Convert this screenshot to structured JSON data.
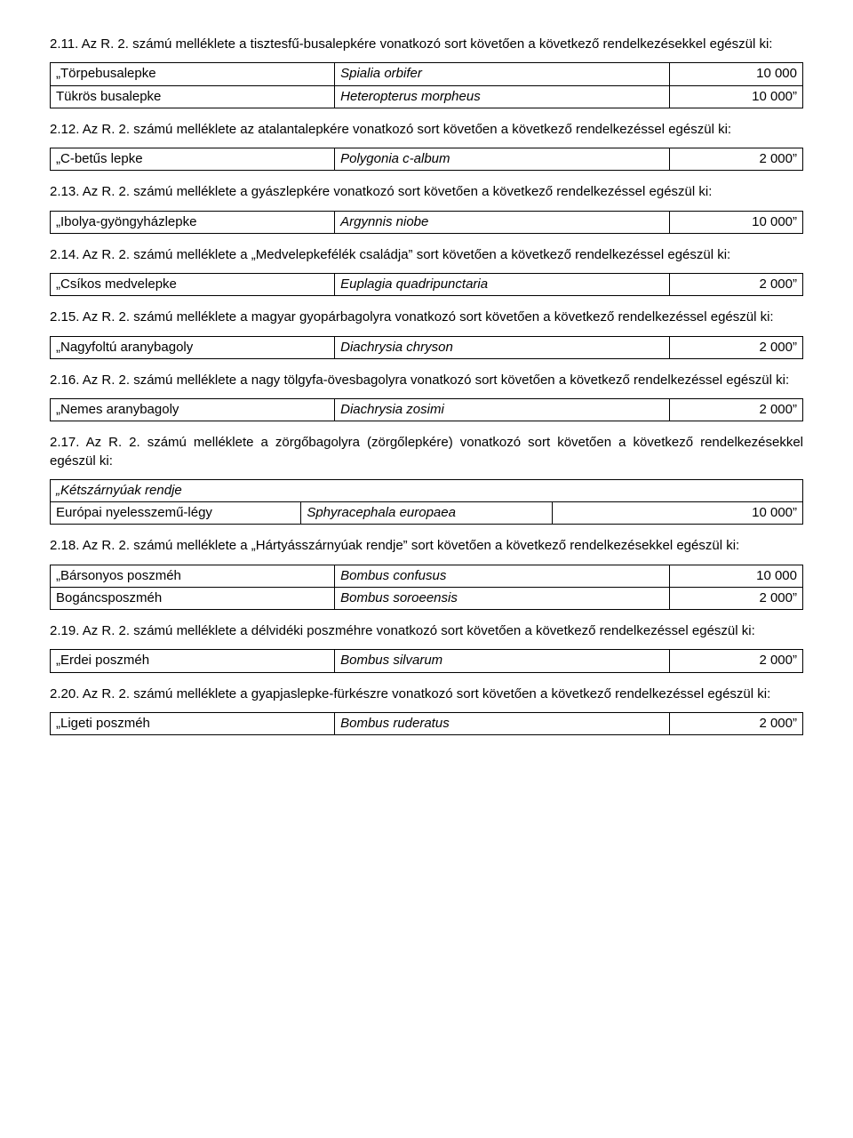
{
  "sections": [
    {
      "para": "2.11. Az R. 2. számú melléklete a tisztesfű-busalepkére vonatkozó sort követően a következő rendelkezésekkel egészül ki:",
      "rows": [
        {
          "c1": "„Törpebusalepke",
          "c2": "Spialia orbifer",
          "c3": "10 000"
        },
        {
          "c1": "Tükrös busalepke",
          "c2": "Heteropterus morpheus",
          "c3": "10 000”"
        }
      ]
    },
    {
      "para": "2.12. Az R. 2. számú melléklete az atalantalepkére vonatkozó sort követően a következő rendelkezéssel egészül ki:",
      "rows": [
        {
          "c1": "„C-betűs lepke",
          "c2": "Polygonia c-album",
          "c3": "2 000”"
        }
      ]
    },
    {
      "para": "2.13. Az R. 2. számú melléklete a gyászlepkére vonatkozó sort követően a következő rendelkezéssel egészül ki:",
      "rows": [
        {
          "c1": "„Ibolya-gyöngyházlepke",
          "c2": "Argynnis niobe",
          "c3": "10 000”"
        }
      ]
    },
    {
      "para": "2.14. Az R. 2. számú melléklete a „Medvelepkefélék családja” sort követően a következő rendelkezéssel egészül ki:",
      "rows": [
        {
          "c1": "„Csíkos medvelepke",
          "c2": "Euplagia quadripunctaria",
          "c3": "2 000”"
        }
      ]
    },
    {
      "para": "2.15. Az R. 2. számú melléklete a magyar gyopárbagolyra vonatkozó sort követően a következő rendelkezéssel egészül ki:",
      "rows": [
        {
          "c1": "„Nagyfoltú aranybagoly",
          "c2": "Diachrysia chryson",
          "c3": "2 000”"
        }
      ]
    },
    {
      "para": "2.16. Az R. 2. számú melléklete a nagy tölgyfa-övesbagolyra vonatkozó sort követően a következő rendelkezéssel egészül ki:",
      "rows": [
        {
          "c1": "„Nemes aranybagoly",
          "c2": "Diachrysia zosimi",
          "c3": "2 000”"
        }
      ]
    },
    {
      "para": "2.17. Az R. 2. számú melléklete a zörgőbagolyra (zörgőlepkére) vonatkozó sort követően a következő rendelkezésekkel egészül ki:",
      "rows": [
        {
          "span": "„Kétszárnyúak rendje"
        },
        {
          "c1": "Európai nyelesszemű-légy",
          "c2": "Sphyracephala europaea",
          "c3": "10 000”"
        }
      ]
    },
    {
      "para": "2.18. Az R. 2. számú melléklete a „Hártyásszárnyúak rendje” sort követően a következő rendelkezésekkel egészül ki:",
      "rows": [
        {
          "c1": "„Bársonyos poszméh",
          "c2": "Bombus confusus",
          "c3": "10 000"
        },
        {
          "c1": "Bogáncsposzméh",
          "c2": "Bombus soroeensis",
          "c3": "2 000”"
        }
      ]
    },
    {
      "para": "2.19. Az R. 2. számú melléklete a délvidéki poszméhre vonatkozó sort követően a következő rendelkezéssel egészül ki:",
      "rows": [
        {
          "c1": "„Erdei poszméh",
          "c2": "Bombus silvarum",
          "c3": "2 000”"
        }
      ]
    },
    {
      "para": "2.20. Az R. 2. számú melléklete a gyapjaslepke-fürkészre vonatkozó sort követően a következő rendelkezéssel egészül ki:",
      "rows": [
        {
          "c1": "„Ligeti poszméh",
          "c2": "Bombus ruderatus",
          "c3": "2 000”"
        }
      ]
    }
  ]
}
